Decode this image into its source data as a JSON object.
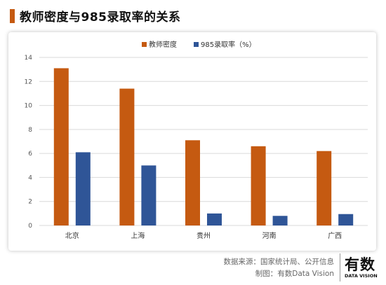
{
  "header": {
    "title": "教师密度与985录取率的关系"
  },
  "colors": {
    "accent": "#c55a11",
    "series1": "#c55a11",
    "series2": "#2f5597"
  },
  "chart_data": {
    "type": "bar",
    "categories": [
      "北京",
      "上海",
      "贵州",
      "河南",
      "广西"
    ],
    "series": [
      {
        "name": "教师密度",
        "values": [
          13.1,
          11.4,
          7.1,
          6.6,
          6.2
        ],
        "color": "#c55a11"
      },
      {
        "name": "985录取率（%）",
        "values": [
          6.1,
          5.0,
          1.0,
          0.8,
          0.95
        ],
        "color": "#2f5597"
      }
    ],
    "ylim": [
      0,
      14
    ],
    "yticks": [
      0,
      2,
      4,
      6,
      8,
      10,
      12,
      14
    ],
    "grid": true,
    "legend": "top-center",
    "xlabel": "",
    "ylabel": ""
  },
  "footer": {
    "source": "数据来源：国家统计局、公开信息",
    "credit": "制图：有数Data Vision"
  },
  "brand": {
    "name": "有数",
    "sub": "DATA VISION"
  }
}
